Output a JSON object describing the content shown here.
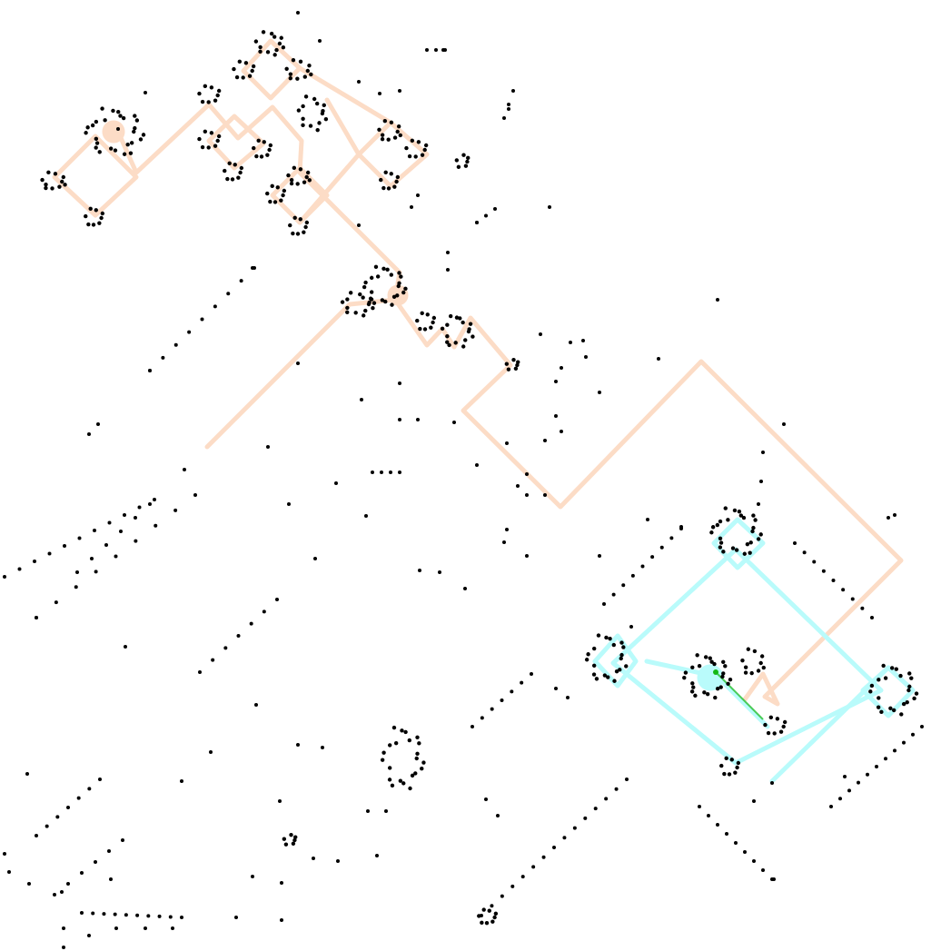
{
  "scene": {
    "background_color": "#ffffff",
    "dot_color": "#000000",
    "peach_path_color": "#fcdcc6",
    "cyan_path_color": "#b9fbfb",
    "green_marker_color": "#14b814"
  },
  "layers": [
    {
      "name": "dot-field",
      "kind": "scattered black markers"
    },
    {
      "name": "peach-trail",
      "kind": "route of diamond loops"
    },
    {
      "name": "cyan-trail",
      "kind": "route of diamond loops"
    },
    {
      "name": "green-marker",
      "kind": "small current-position mark"
    }
  ]
}
